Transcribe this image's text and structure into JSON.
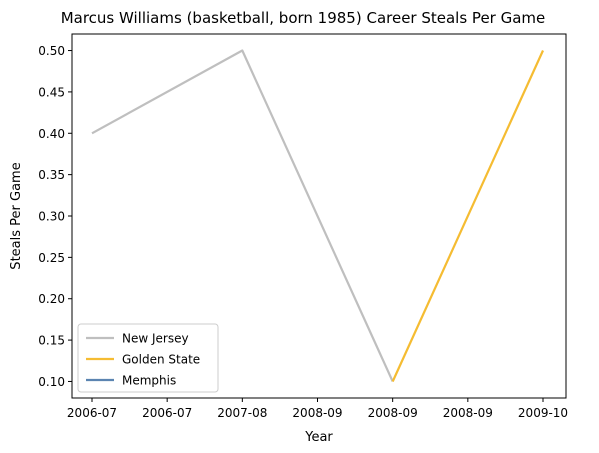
{
  "chart_data": {
    "type": "line",
    "title": "Marcus Williams (basketball, born 1985) Career Steals Per Game",
    "xlabel": "Year",
    "ylabel": "Steals Per Game",
    "x_tick_labels": [
      "2006-07",
      "2006-07",
      "2007-08",
      "2008-09",
      "2008-09",
      "2008-09",
      "2009-10"
    ],
    "y_ticks": [
      0.1,
      0.15,
      0.2,
      0.25,
      0.3,
      0.35,
      0.4,
      0.45,
      0.5
    ],
    "ylim": [
      0.08,
      0.52
    ],
    "grid": false,
    "legend_position": "lower-left",
    "series": [
      {
        "name": "New Jersey",
        "color": "#bfbfbf",
        "points": [
          [
            "2006-07",
            0.4
          ],
          [
            "2007-08",
            0.5
          ],
          [
            "2008-09",
            0.1
          ]
        ]
      },
      {
        "name": "Golden State",
        "color": "#f5bc32",
        "points": [
          [
            "2008-09",
            0.1
          ],
          [
            "2009-10",
            0.5
          ]
        ]
      },
      {
        "name": "Memphis",
        "color": "#5b84b1",
        "points": []
      }
    ]
  }
}
